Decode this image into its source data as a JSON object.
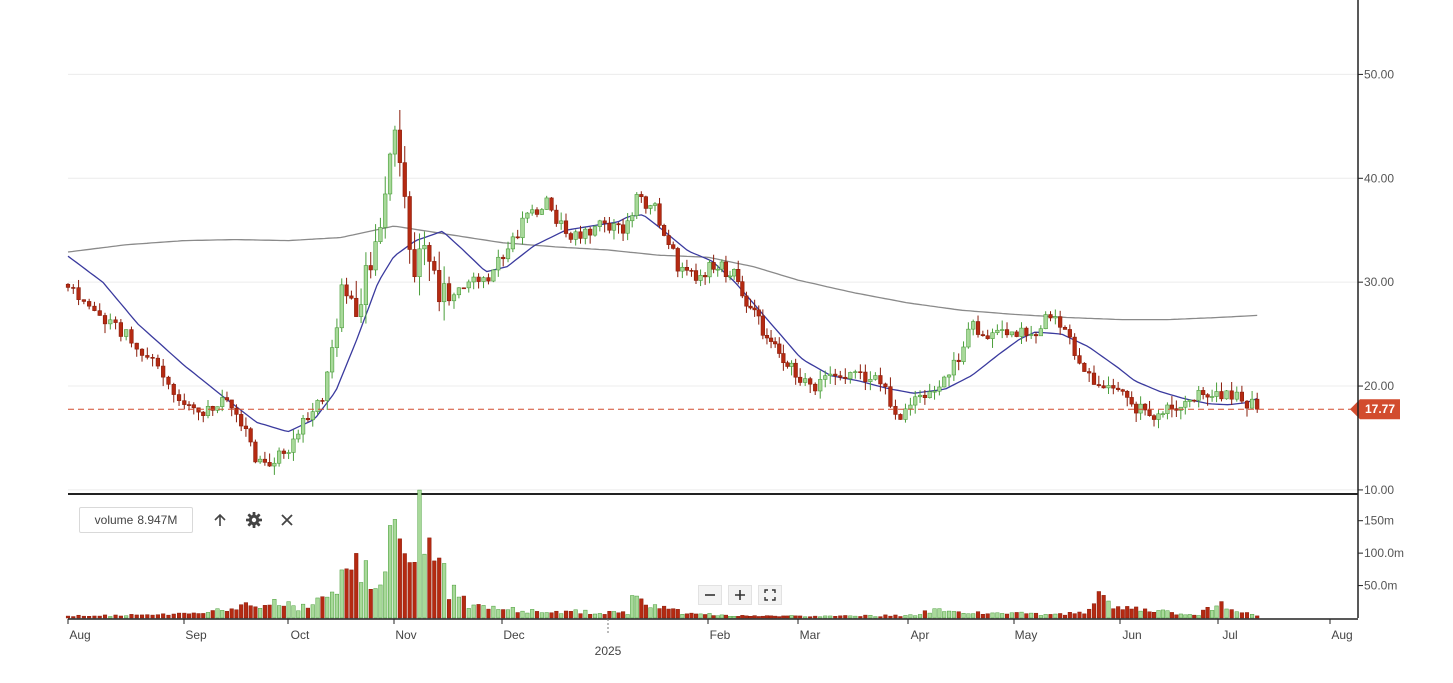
{
  "colors": {
    "up_fill": "#a8d99a",
    "up_stroke": "#4a9e3a",
    "down_fill": "#b52a12",
    "down_stroke": "#8a1c0a",
    "ma_short": "#3a3a9e",
    "ma_long": "#8a8a8a",
    "last_price": "#d24c2e",
    "grid": "#ececec",
    "axis": "#222222"
  },
  "last_price": {
    "value": 17.77,
    "label": "17.77"
  },
  "volume_panel": {
    "label": "volume",
    "value": "8.947M",
    "icons": [
      "arrow-up-icon",
      "gear-icon",
      "close-icon"
    ]
  },
  "zoom_controls": [
    "zoom-out-icon",
    "zoom-in-icon",
    "fullscreen-icon"
  ],
  "chart_data": {
    "type": "candlestick",
    "series": [
      {
        "name": "",
        "kind": "ohlc"
      },
      {
        "name": "",
        "kind": "moving-average-short"
      },
      {
        "name": "",
        "kind": "moving-average-long"
      },
      {
        "name": "volume",
        "kind": "volume"
      }
    ],
    "price_axis": {
      "ticks": [
        10,
        20,
        30,
        40,
        50
      ],
      "tick_labels": [
        "10.00",
        "20.00",
        "30.00",
        "40.00",
        "50.00"
      ],
      "range": [
        9.8,
        56.2
      ],
      "side": "right"
    },
    "volume_axis": {
      "ticks": [
        50,
        100,
        150
      ],
      "tick_labels": [
        "50.0m",
        "100.0m",
        "150m"
      ],
      "unit": "m",
      "range": [
        0,
        185
      ]
    },
    "x_axis": {
      "labels": [
        "Aug",
        "Sep",
        "Oct",
        "Nov",
        "Dec",
        "2025",
        "Feb",
        "Mar",
        "Apr",
        "May",
        "Jun",
        "Jul",
        "Aug"
      ],
      "positions": [
        0,
        1,
        2,
        3,
        4,
        5,
        6,
        7,
        8,
        9,
        10,
        11,
        12
      ],
      "year_marker": {
        "label": "2025",
        "position": 5
      }
    },
    "price_waypoints": [
      [
        0,
        29.8
      ],
      [
        0.3,
        27.0
      ],
      [
        0.6,
        23.5
      ],
      [
        0.9,
        19.8
      ],
      [
        1.15,
        17.2
      ],
      [
        1.35,
        18.5
      ],
      [
        1.5,
        17.0
      ],
      [
        1.7,
        13.0
      ],
      [
        1.8,
        12.0
      ],
      [
        2.0,
        14.2
      ],
      [
        2.2,
        17.5
      ],
      [
        2.35,
        19.5
      ],
      [
        2.45,
        25.0
      ],
      [
        2.5,
        29.5
      ],
      [
        2.65,
        28.0
      ],
      [
        2.8,
        33.0
      ],
      [
        2.9,
        36.0
      ],
      [
        3.0,
        45.0
      ],
      [
        3.05,
        42.0
      ],
      [
        3.1,
        37.0
      ],
      [
        3.18,
        31.0
      ],
      [
        3.3,
        34.0
      ],
      [
        3.4,
        29.0
      ],
      [
        3.55,
        28.0
      ],
      [
        3.7,
        30.0
      ],
      [
        3.85,
        30.5
      ],
      [
        4.0,
        32.5
      ],
      [
        4.15,
        35.0
      ],
      [
        4.3,
        37.0
      ],
      [
        4.45,
        38.0
      ],
      [
        4.6,
        34.0
      ],
      [
        4.8,
        35.0
      ],
      [
        5.0,
        35.5
      ],
      [
        5.15,
        34.5
      ],
      [
        5.3,
        38.0
      ],
      [
        5.45,
        37.5
      ],
      [
        5.6,
        34.0
      ],
      [
        5.75,
        30.5
      ],
      [
        5.95,
        31.0
      ],
      [
        6.1,
        32.0
      ],
      [
        6.3,
        30.5
      ],
      [
        6.5,
        27.0
      ],
      [
        6.7,
        24.0
      ],
      [
        6.9,
        22.0
      ],
      [
        7.1,
        20.0
      ],
      [
        7.3,
        21.0
      ],
      [
        7.5,
        21.5
      ],
      [
        7.7,
        20.5
      ],
      [
        7.85,
        18.5
      ],
      [
        7.95,
        17.0
      ],
      [
        8.05,
        18.0
      ],
      [
        8.15,
        19.0
      ],
      [
        8.3,
        20.5
      ],
      [
        8.45,
        22.0
      ],
      [
        8.6,
        25.5
      ],
      [
        8.8,
        24.5
      ],
      [
        9.0,
        25.0
      ],
      [
        9.2,
        25.5
      ],
      [
        9.35,
        27.0
      ],
      [
        9.45,
        26.0
      ],
      [
        9.5,
        26.0
      ],
      [
        9.55,
        23.0
      ],
      [
        9.7,
        21.0
      ],
      [
        9.85,
        20.0
      ],
      [
        10.0,
        19.5
      ],
      [
        10.15,
        18.0
      ],
      [
        10.3,
        17.5
      ],
      [
        10.5,
        17.8
      ],
      [
        10.7,
        19.2
      ],
      [
        10.9,
        18.6
      ],
      [
        11.1,
        19.5
      ],
      [
        11.2,
        19.0
      ],
      [
        11.3,
        18.3
      ],
      [
        11.35,
        17.77
      ]
    ],
    "ma_short_waypoints": [
      [
        0,
        32.5
      ],
      [
        0.3,
        30.0
      ],
      [
        0.6,
        26.0
      ],
      [
        1.0,
        22.0
      ],
      [
        1.4,
        18.8
      ],
      [
        1.7,
        16.5
      ],
      [
        2.0,
        15.6
      ],
      [
        2.25,
        16.8
      ],
      [
        2.45,
        19.5
      ],
      [
        2.65,
        24.5
      ],
      [
        2.85,
        30.0
      ],
      [
        3.0,
        32.5
      ],
      [
        3.2,
        34.0
      ],
      [
        3.45,
        34.9
      ],
      [
        3.65,
        33.0
      ],
      [
        3.85,
        31.0
      ],
      [
        4.05,
        31.5
      ],
      [
        4.3,
        33.5
      ],
      [
        4.6,
        35.0
      ],
      [
        4.9,
        35.5
      ],
      [
        5.1,
        35.8
      ],
      [
        5.2,
        36.3
      ],
      [
        5.35,
        36.5
      ],
      [
        5.55,
        35.0
      ],
      [
        5.8,
        33.0
      ],
      [
        6.05,
        32.0
      ],
      [
        6.3,
        30.0
      ],
      [
        6.55,
        27.5
      ],
      [
        6.8,
        25.0
      ],
      [
        7.05,
        22.5
      ],
      [
        7.3,
        21.0
      ],
      [
        7.55,
        20.5
      ],
      [
        7.8,
        19.8
      ],
      [
        8.05,
        19.3
      ],
      [
        8.35,
        19.7
      ],
      [
        8.6,
        21.0
      ],
      [
        8.85,
        23.0
      ],
      [
        9.05,
        24.5
      ],
      [
        9.2,
        25.2
      ],
      [
        9.45,
        25.0
      ],
      [
        9.7,
        23.8
      ],
      [
        9.95,
        22.0
      ],
      [
        10.15,
        20.5
      ],
      [
        10.4,
        19.5
      ],
      [
        10.65,
        18.8
      ],
      [
        10.9,
        18.3
      ],
      [
        11.1,
        18.2
      ],
      [
        11.25,
        18.4
      ],
      [
        11.35,
        18.8
      ]
    ],
    "ma_long_waypoints": [
      [
        0,
        32.9
      ],
      [
        0.5,
        33.6
      ],
      [
        1.0,
        34.0
      ],
      [
        1.5,
        34.1
      ],
      [
        2.0,
        34.0
      ],
      [
        2.5,
        34.3
      ],
      [
        3.0,
        35.4
      ],
      [
        3.5,
        34.6
      ],
      [
        4.0,
        33.8
      ],
      [
        4.5,
        33.4
      ],
      [
        5.0,
        33.1
      ],
      [
        5.5,
        32.6
      ],
      [
        6.0,
        32.4
      ],
      [
        6.5,
        31.5
      ],
      [
        7.0,
        30.2
      ],
      [
        7.5,
        29.0
      ],
      [
        8.0,
        28.0
      ],
      [
        8.5,
        27.3
      ],
      [
        9.0,
        26.9
      ],
      [
        9.5,
        26.6
      ],
      [
        10.0,
        26.4
      ],
      [
        10.5,
        26.4
      ],
      [
        11.0,
        26.6
      ],
      [
        11.35,
        26.8
      ]
    ],
    "volume_waypoints": [
      [
        0,
        3
      ],
      [
        0.8,
        5
      ],
      [
        1.2,
        8
      ],
      [
        1.4,
        14
      ],
      [
        1.6,
        18
      ],
      [
        1.85,
        22
      ],
      [
        2.1,
        18
      ],
      [
        2.25,
        25
      ],
      [
        2.35,
        45
      ],
      [
        2.5,
        55
      ],
      [
        2.65,
        85
      ],
      [
        2.85,
        60
      ],
      [
        2.95,
        120
      ],
      [
        3.05,
        150
      ],
      [
        3.15,
        100
      ],
      [
        3.25,
        165
      ],
      [
        3.35,
        110
      ],
      [
        3.5,
        45
      ],
      [
        3.7,
        18
      ],
      [
        4.0,
        12
      ],
      [
        4.3,
        12
      ],
      [
        4.6,
        10
      ],
      [
        4.9,
        8
      ],
      [
        5.2,
        8
      ],
      [
        5.25,
        42
      ],
      [
        5.35,
        22
      ],
      [
        5.5,
        20
      ],
      [
        5.8,
        6
      ],
      [
        6.5,
        3
      ],
      [
        7.5,
        3
      ],
      [
        8.0,
        4
      ],
      [
        8.3,
        12
      ],
      [
        8.7,
        8
      ],
      [
        9.2,
        6
      ],
      [
        9.7,
        8
      ],
      [
        9.8,
        50
      ],
      [
        9.9,
        18
      ],
      [
        10.2,
        14
      ],
      [
        10.5,
        8
      ],
      [
        10.8,
        6
      ],
      [
        11.0,
        22
      ],
      [
        11.15,
        10
      ],
      [
        11.35,
        4
      ]
    ]
  }
}
